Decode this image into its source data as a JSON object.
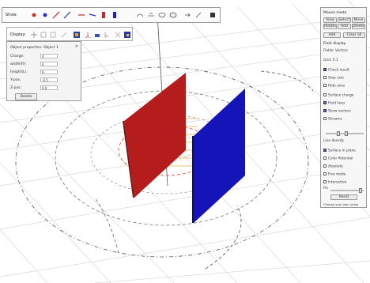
{
  "toolbar": {
    "label": "Show:",
    "icons": [
      "charge-positive-icon",
      "charge-negative-icon",
      "line-charge-icon",
      "rod-icon",
      "line-red-icon",
      "wire-icon",
      "plate-red-icon",
      "plate-blue-icon",
      "spacer",
      "field-lines-icon",
      "equipotential-icon",
      "surface-icon",
      "disk-icon",
      "sphere-icon",
      "arrows-icon",
      "eraser-icon",
      "delete-icon"
    ]
  },
  "toolbar2": {
    "label": "Display:",
    "icons": [
      "grid-icon",
      "grid-dense-icon",
      "grid-sparse-icon",
      "vectors-icon",
      "colormap-icon",
      "triad-icon",
      "potential-icon",
      "cursor-icon",
      "mesh-icon",
      "mesh2-icon",
      "flux-icon",
      "heatmap-icon"
    ]
  },
  "dialog": {
    "title": "Object properties: Object 1",
    "rows": [
      {
        "label": "Charge: ",
        "value": "4"
      },
      {
        "label": "width(R):",
        "value": "4"
      },
      {
        "label": "height(L):",
        "value": "9"
      },
      {
        "label": "Y-pos:",
        "value": "-0.5"
      },
      {
        "label": "Z-pos:",
        "value": "0.0"
      }
    ],
    "button": "Delete"
  },
  "right_panel": {
    "title": "Mouse mode",
    "mode_buttons": [
      "View",
      "Select",
      "Move",
      "Rotate",
      "Add",
      "Delete"
    ],
    "sub_buttons": [
      "Add",
      "Clear all"
    ],
    "section_fields": "Field display",
    "items": [
      "Fields: Vectors",
      "Grid: 0.1",
      "Check result",
      "Stop rate",
      "Hide axes",
      "Surface charge",
      "Field lines",
      "Show vectors",
      "Streams",
      "Line density",
      "Surface in plane",
      "Color Potential",
      "Absolute",
      "Fine mode",
      "Interactive",
      "Fix"
    ],
    "bottom_button": "Reset",
    "bottom_text": "Choose your own value"
  },
  "colors": {
    "plate_positive": "#b51c1c",
    "plate_negative": "#1414b8",
    "field_line_red": "#e0402a",
    "field_line_yellow": "#e8c24a",
    "gridline": "#d8d8d8"
  }
}
